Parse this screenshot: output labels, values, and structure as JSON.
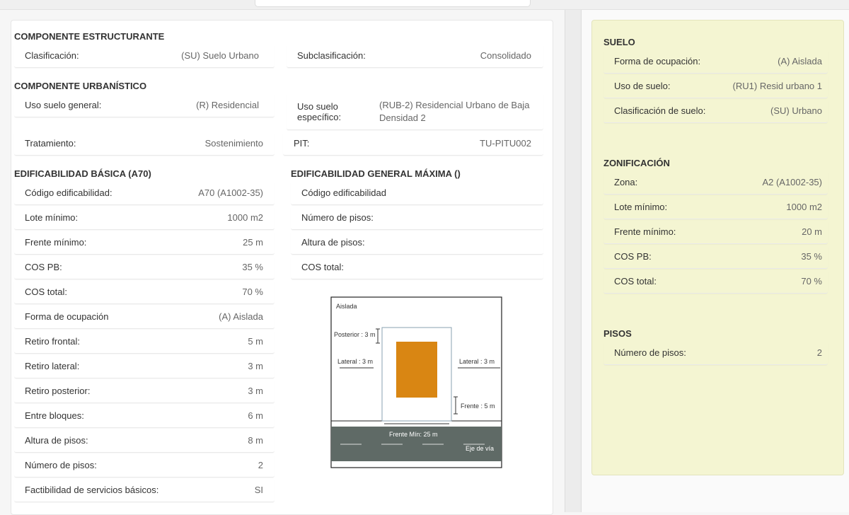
{
  "structuring": {
    "title": "COMPONENTE ESTRUCTURANTE",
    "rows": [
      {
        "label": "Clasificación:",
        "value": "(SU) Suelo Urbano"
      },
      {
        "label": "Subclasificación:",
        "value": "Consolidado"
      }
    ]
  },
  "urban": {
    "title": "COMPONENTE URBANÍSTICO",
    "rows": [
      {
        "label": "Uso suelo general:",
        "value": "(R) Residencial"
      },
      {
        "label": "Uso suelo específico:",
        "value": "(RUB-2) Residencial Urbano de Baja Densidad 2"
      },
      {
        "label": "Tratamiento:",
        "value": "Sostenimiento"
      },
      {
        "label": "PIT:",
        "value": "TU-PITU002"
      }
    ]
  },
  "basic": {
    "title": "EDIFICABILIDAD BÁSICA (A70)",
    "rows": [
      {
        "label": "Código edificabilidad:",
        "value": "A70 (A1002-35)"
      },
      {
        "label": "Lote mínimo:",
        "value": "1000 m2"
      },
      {
        "label": "Frente mínimo:",
        "value": "25 m"
      },
      {
        "label": "COS PB:",
        "value": "35 %"
      },
      {
        "label": "COS total:",
        "value": "70 %"
      },
      {
        "label": "Forma de ocupación",
        "value": "(A) Aislada"
      },
      {
        "label": "Retiro frontal:",
        "value": "5 m"
      },
      {
        "label": "Retiro lateral:",
        "value": "3 m"
      },
      {
        "label": "Retiro posterior:",
        "value": "3 m"
      },
      {
        "label": "Entre bloques:",
        "value": "6 m"
      },
      {
        "label": "Altura de pisos:",
        "value": "8 m"
      },
      {
        "label": "Número de pisos:",
        "value": "2"
      },
      {
        "label": "Factibilidad de servicios básicos:",
        "value": "SI"
      }
    ]
  },
  "maximum": {
    "title": "EDIFICABILIDAD GENERAL MÁXIMA ()",
    "rows": [
      {
        "label": "Código edificabilidad"
      },
      {
        "label": "Número de pisos:"
      },
      {
        "label": "Altura de pisos:"
      },
      {
        "label": "COS total:"
      }
    ]
  },
  "diagram": {
    "title": "Aislada",
    "posterior": "Posterior : 3 m",
    "lateral_left": "Lateral : 3 m",
    "lateral_right": "Lateral : 3 m",
    "front": "Frente : 5 m",
    "min_front": "Frente Mín: 25 m",
    "axis": "Eje de vía"
  },
  "suelo": {
    "title": "SUELO",
    "rows": [
      {
        "label": "Forma de ocupación:",
        "value": "(A) Aislada"
      },
      {
        "label": "Uso de suelo:",
        "value": "(RU1) Resid urbano 1"
      },
      {
        "label": "Clasificación de suelo:",
        "value": "(SU) Urbano"
      }
    ]
  },
  "zoning": {
    "title": "ZONIFICACIÓN",
    "rows": [
      {
        "label": "Zona:",
        "value": "A2 (A1002-35)"
      },
      {
        "label": "Lote mínimo:",
        "value": "1000 m2"
      },
      {
        "label": "Frente mínimo:",
        "value": "20 m"
      },
      {
        "label": "COS PB:",
        "value": "35 %"
      },
      {
        "label": "COS total:",
        "value": "70 %"
      }
    ]
  },
  "floors": {
    "title": "PISOS",
    "rows": [
      {
        "label": "Número de pisos:",
        "value": "2"
      }
    ]
  }
}
